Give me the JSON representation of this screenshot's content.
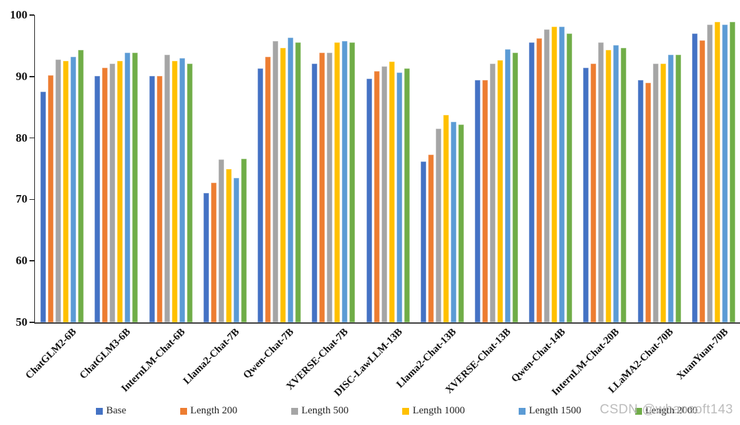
{
  "watermark": "CSDN @whaosoft143",
  "chart_data": {
    "type": "bar",
    "title": "",
    "xlabel": "",
    "ylabel": "",
    "ylim": [
      50,
      100
    ],
    "yticks": [
      50,
      60,
      70,
      80,
      90,
      100
    ],
    "grid": false,
    "legend_position": "bottom",
    "categories": [
      "ChatGLM2-6B",
      "ChatGLM3-6B",
      "InternLM-Chat-6B",
      "Llama2-Chat-7B",
      "Qwen-Chat-7B",
      "XVERSE-Chat-7B",
      "DISC-LawLLM-13B",
      "Llama2-Chat-13B",
      "XVERSE-Chat-13B",
      "Qwen-Chat-14B",
      "InternLM-Chat-20B",
      "LLaMA2-Chat-70B",
      "XuanYuan-70B"
    ],
    "series": [
      {
        "name": "Base",
        "color": "#4472C4",
        "values": [
          87.5,
          90.1,
          90.1,
          71.1,
          91.3,
          92.1,
          89.7,
          76.2,
          89.4,
          95.5,
          91.4,
          89.4,
          97.0
        ]
      },
      {
        "name": "Length 200",
        "color": "#ED7D31",
        "values": [
          90.2,
          91.4,
          90.1,
          72.7,
          93.2,
          93.9,
          90.9,
          77.3,
          89.4,
          96.2,
          92.1,
          89.0,
          95.9
        ]
      },
      {
        "name": "Length 500",
        "color": "#A5A5A5",
        "values": [
          92.8,
          92.1,
          93.6,
          76.5,
          95.8,
          93.9,
          91.7,
          81.5,
          92.1,
          97.7,
          95.5,
          92.1,
          98.5
        ]
      },
      {
        "name": "Length 1000",
        "color": "#FFC000",
        "values": [
          92.5,
          92.5,
          92.5,
          75.0,
          94.7,
          95.6,
          92.4,
          83.7,
          92.7,
          98.1,
          94.3,
          92.1,
          98.9
        ]
      },
      {
        "name": "Length 1500",
        "color": "#5B9BD5",
        "values": [
          93.2,
          93.9,
          93.0,
          73.5,
          96.3,
          95.8,
          90.6,
          82.6,
          94.4,
          98.1,
          95.1,
          93.6,
          98.5
        ]
      },
      {
        "name": "Length 2000",
        "color": "#70AD47",
        "values": [
          94.3,
          93.9,
          92.1,
          76.6,
          95.5,
          95.5,
          91.3,
          82.2,
          93.9,
          97.0,
          94.7,
          93.6,
          98.9
        ]
      }
    ]
  }
}
